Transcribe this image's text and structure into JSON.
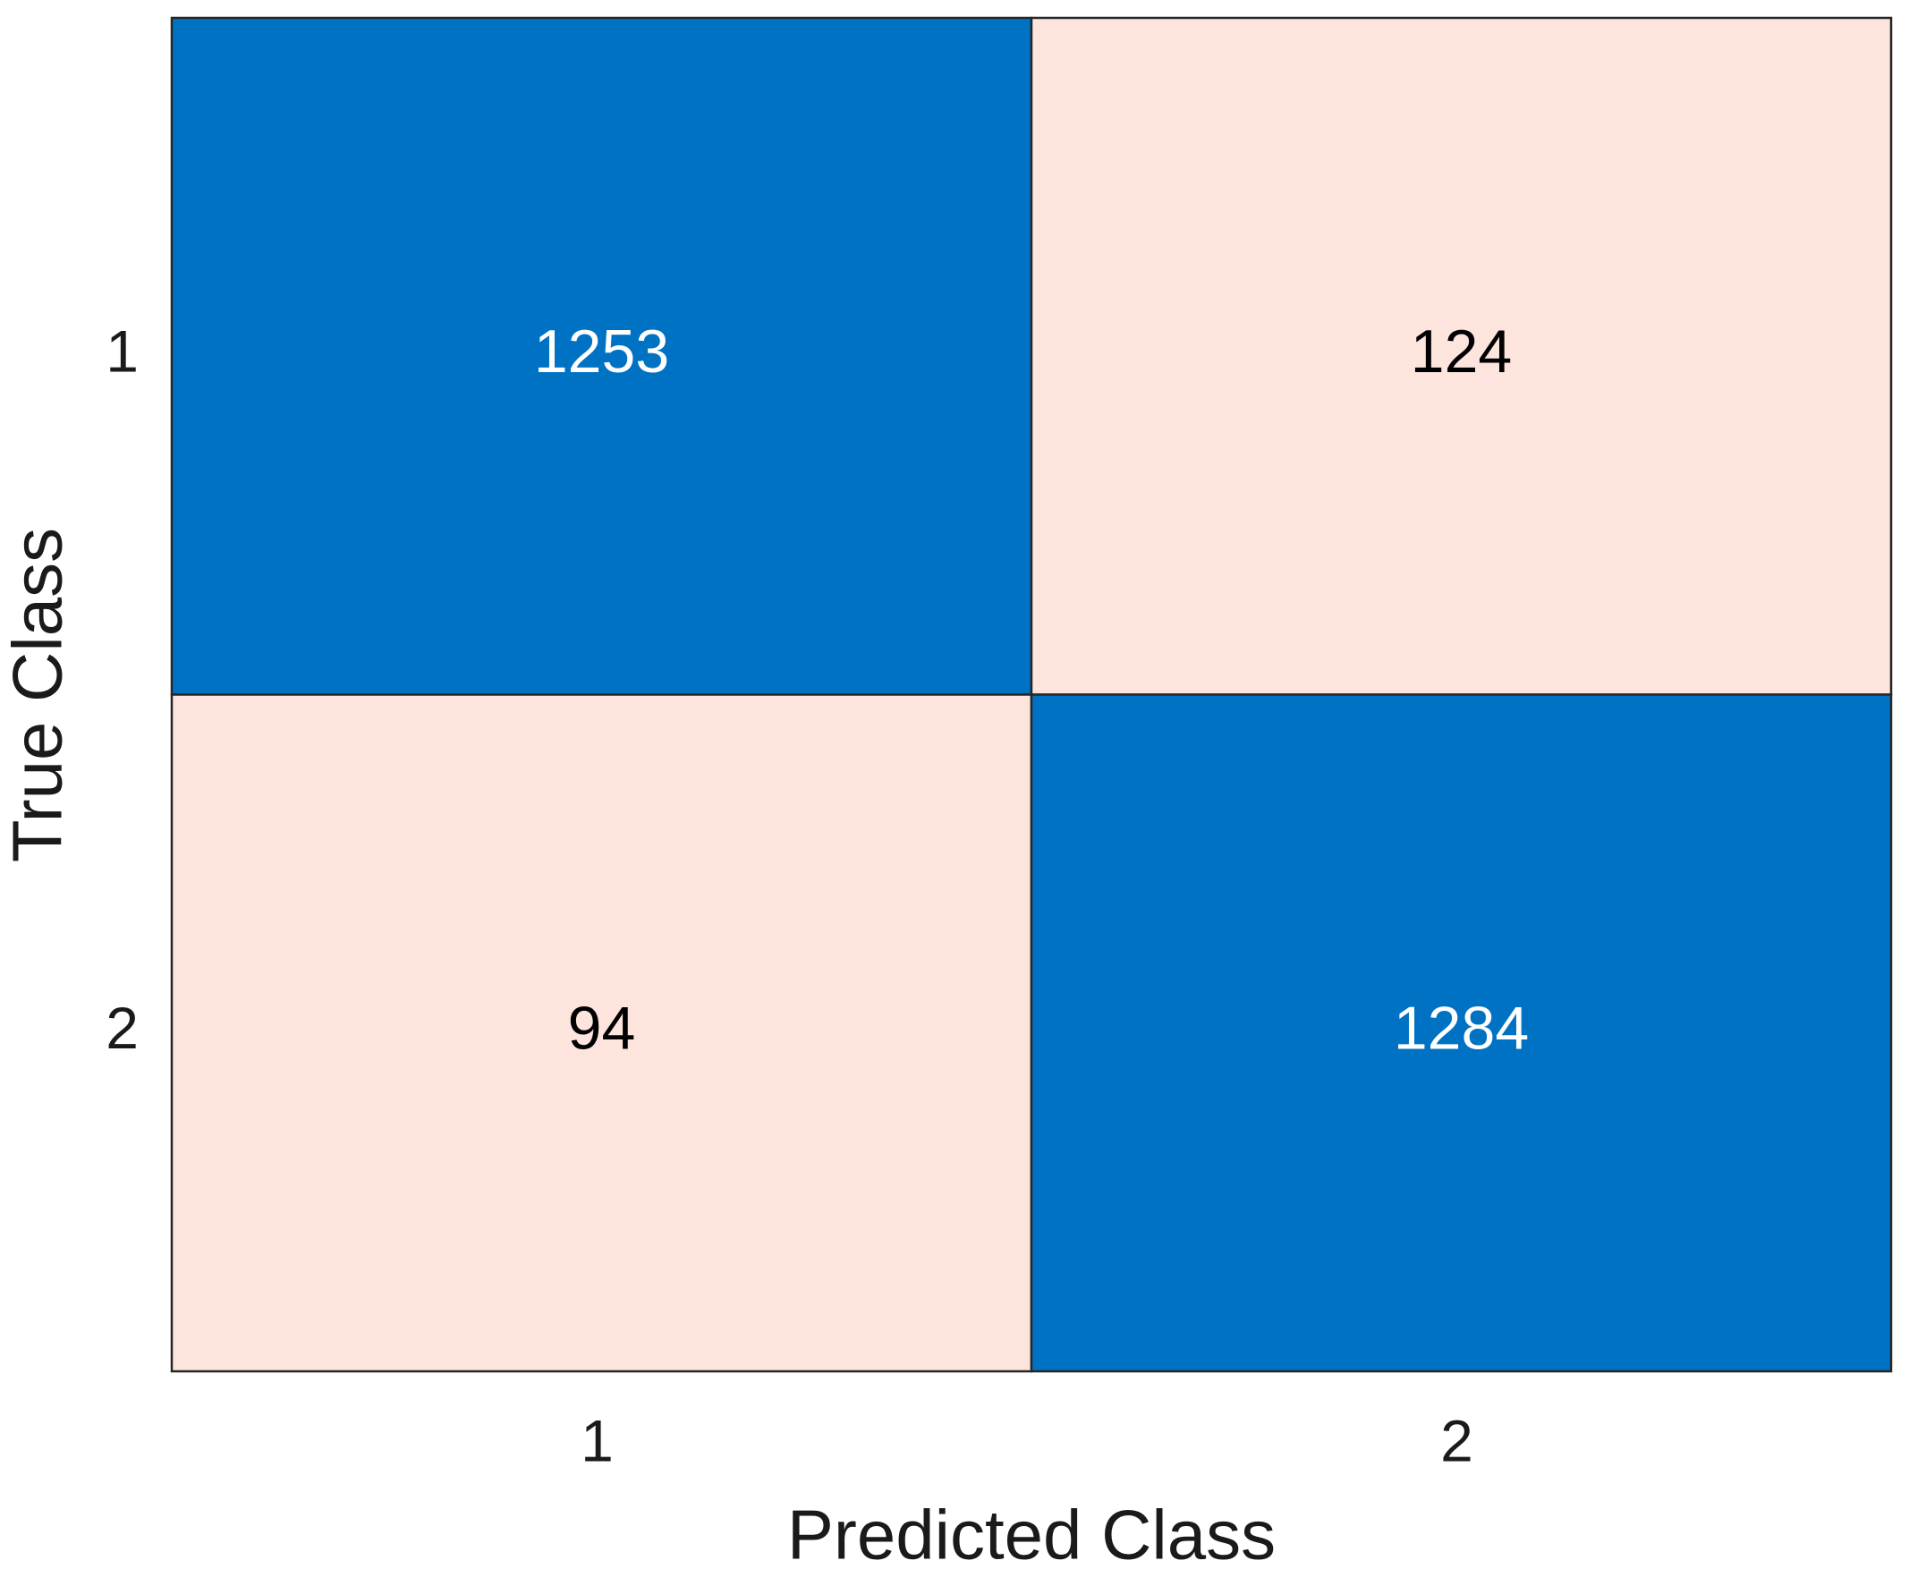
{
  "chart_data": {
    "type": "confusion",
    "xlabel": "Predicted Class",
    "ylabel": "True Class",
    "x_categories": [
      "1",
      "2"
    ],
    "y_categories": [
      "1",
      "2"
    ],
    "values": [
      [
        1253,
        124
      ],
      [
        94,
        1284
      ]
    ],
    "diagonal_color": "#0072c3",
    "off_diagonal_color": "#fde5dd"
  }
}
